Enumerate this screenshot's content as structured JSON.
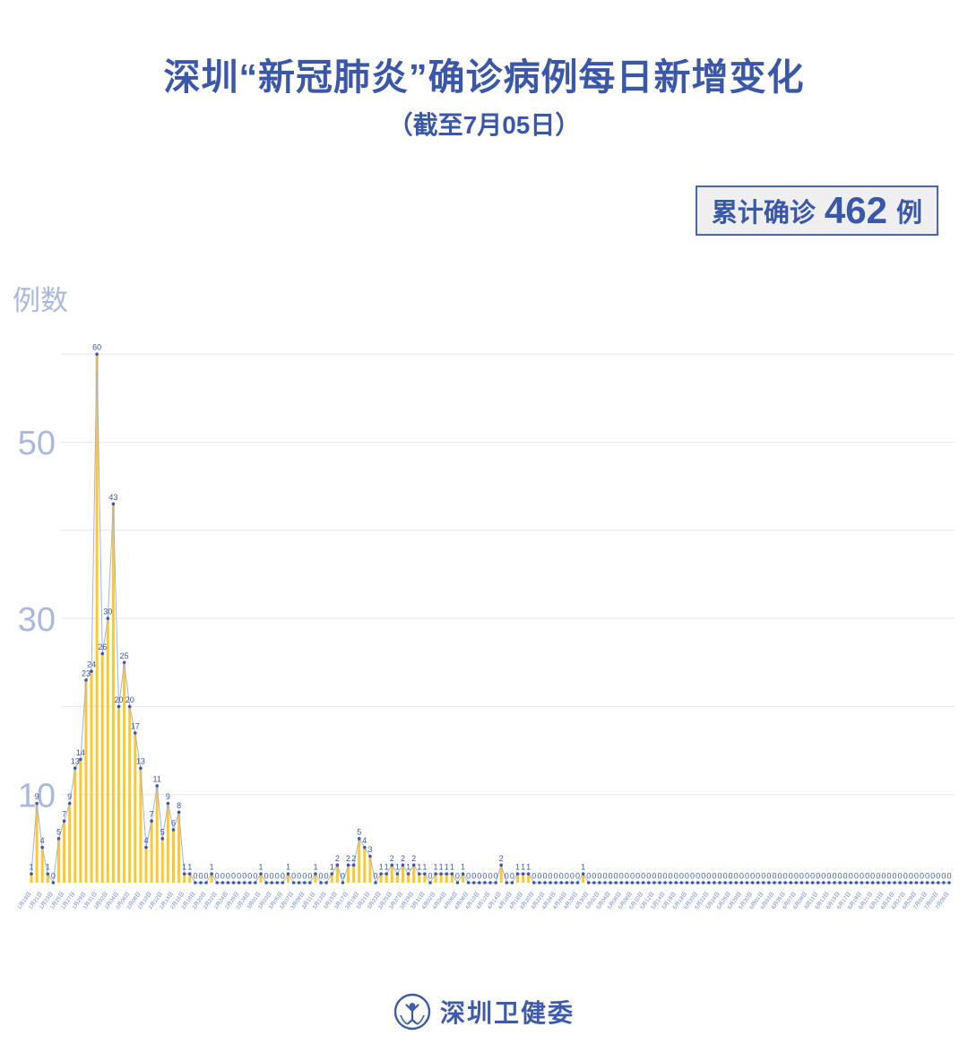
{
  "header": {
    "title": "深圳“新冠肺炎”确诊病例每日新增变化",
    "subtitle": "（截至7月05日）"
  },
  "badge": {
    "prefix": "累计确诊",
    "value": "462",
    "suffix": "例"
  },
  "chart": {
    "y_axis_title": "例数"
  },
  "footer": {
    "org_name": "深圳卫健委",
    "logo": "shenzhen-health-commission-emblem"
  },
  "colors": {
    "primary_blue": "#3A57A8",
    "axis_label_blue": "#A9B8DF",
    "line_blue": "#9FB3E0",
    "dot_blue": "#3A57A8",
    "bar_yellow": "#FFC72C",
    "grid_gray": "#E8E8E8",
    "x_label_blue": "#6B84C8",
    "badge_bg": "#EFEFEF"
  },
  "chart_data": {
    "type": "bar-line",
    "title": "深圳“新冠肺炎”确诊病例每日新增变化",
    "ylabel": "例数",
    "ylim": [
      0,
      62
    ],
    "gridlines": [
      10,
      20,
      30,
      40,
      50,
      60
    ],
    "ytick_labels": [
      50,
      30,
      10
    ],
    "legend_position": "none",
    "total": 462,
    "x": [
      "1月19日",
      "1月20日",
      "1月21日",
      "1月22日",
      "1月23日",
      "1月24日",
      "1月25日",
      "1月26日",
      "1月27日",
      "1月28日",
      "1月29日",
      "1月30日",
      "1月31日",
      "2月01日",
      "2月02日",
      "2月03日",
      "2月04日",
      "2月05日",
      "2月06日",
      "2月07日",
      "2月08日",
      "2月09日",
      "2月10日",
      "2月11日",
      "2月12日",
      "2月13日",
      "2月14日",
      "2月15日",
      "2月16日",
      "2月17日",
      "2月18日",
      "2月19日",
      "2月20日",
      "2月21日",
      "2月22日",
      "2月23日",
      "2月24日",
      "2月25日",
      "2月26日",
      "2月27日",
      "2月28日",
      "2月29日",
      "3月01日",
      "3月02日",
      "3月03日",
      "3月04日",
      "3月05日",
      "3月06日",
      "3月07日",
      "3月08日",
      "3月09日",
      "3月10日",
      "3月11日",
      "3月12日",
      "3月13日",
      "3月14日",
      "3月15日",
      "3月16日",
      "3月17日",
      "3月18日",
      "3月19日",
      "3月20日",
      "3月21日",
      "3月22日",
      "3月23日",
      "3月24日",
      "3月25日",
      "3月26日",
      "3月27日",
      "3月28日",
      "3月29日",
      "3月30日",
      "3月31日",
      "4月01日",
      "4月02日",
      "4月03日",
      "4月04日",
      "4月05日",
      "4月06日",
      "4月07日",
      "4月08日",
      "4月09日",
      "4月10日",
      "4月11日",
      "4月12日",
      "4月13日",
      "4月14日",
      "4月15日",
      "4月16日",
      "4月17日",
      "4月18日",
      "4月19日",
      "4月20日",
      "4月21日",
      "4月22日",
      "4月23日",
      "4月24日",
      "4月25日",
      "4月26日",
      "4月27日",
      "4月28日",
      "4月29日",
      "4月30日",
      "5月01日",
      "5月02日",
      "5月03日",
      "5月04日",
      "5月05日",
      "5月06日",
      "5月07日",
      "5月08日",
      "5月09日",
      "5月10日",
      "5月11日",
      "5月12日",
      "5月13日",
      "5月14日",
      "5月15日",
      "5月16日",
      "5月17日",
      "5月18日",
      "5月19日",
      "5月20日",
      "5月21日",
      "5月22日",
      "5月23日",
      "5月24日",
      "5月25日",
      "5月26日",
      "5月27日",
      "5月28日",
      "5月29日",
      "5月30日",
      "5月31日",
      "6月01日",
      "6月02日",
      "6月03日",
      "6月04日",
      "6月05日",
      "6月06日",
      "6月07日",
      "6月08日",
      "6月09日",
      "6月10日",
      "6月11日",
      "6月12日",
      "6月13日",
      "6月14日",
      "6月15日",
      "6月16日",
      "6月17日",
      "6月18日",
      "6月19日",
      "6月20日",
      "6月21日",
      "6月22日",
      "6月23日",
      "6月24日",
      "6月25日",
      "6月26日",
      "6月27日",
      "6月28日",
      "6月29日",
      "6月30日",
      "7月01日",
      "7月02日",
      "7月03日",
      "7月04日",
      "7月05日"
    ],
    "values": [
      1,
      9,
      4,
      1,
      0,
      5,
      7,
      9,
      13,
      14,
      23,
      24,
      60,
      26,
      30,
      43,
      20,
      25,
      20,
      17,
      13,
      4,
      7,
      11,
      5,
      9,
      6,
      8,
      1,
      1,
      0,
      0,
      0,
      1,
      0,
      0,
      0,
      0,
      0,
      0,
      0,
      0,
      1,
      0,
      0,
      0,
      0,
      1,
      0,
      0,
      0,
      0,
      1,
      0,
      0,
      1,
      2,
      0,
      2,
      2,
      5,
      4,
      3,
      0,
      1,
      1,
      2,
      1,
      2,
      1,
      2,
      1,
      1,
      0,
      1,
      1,
      1,
      1,
      0,
      1,
      0,
      0,
      0,
      0,
      0,
      0,
      2,
      0,
      0,
      1,
      1,
      1,
      0,
      0,
      0,
      0,
      0,
      0,
      0,
      0,
      0,
      1,
      0,
      0,
      0,
      0,
      0,
      0,
      0,
      0,
      0,
      0,
      0,
      0,
      0,
      0,
      0,
      0,
      0,
      0,
      0,
      0,
      0,
      0,
      0,
      0,
      0,
      0,
      0,
      0,
      0,
      0,
      0,
      0,
      0,
      0,
      0,
      0,
      0,
      0,
      0,
      0,
      0,
      0,
      0,
      0,
      0,
      0,
      0,
      0,
      0,
      0,
      0,
      0,
      0,
      0,
      0,
      0,
      0,
      0,
      0,
      0,
      0,
      0,
      0,
      0,
      0,
      0,
      0
    ]
  }
}
